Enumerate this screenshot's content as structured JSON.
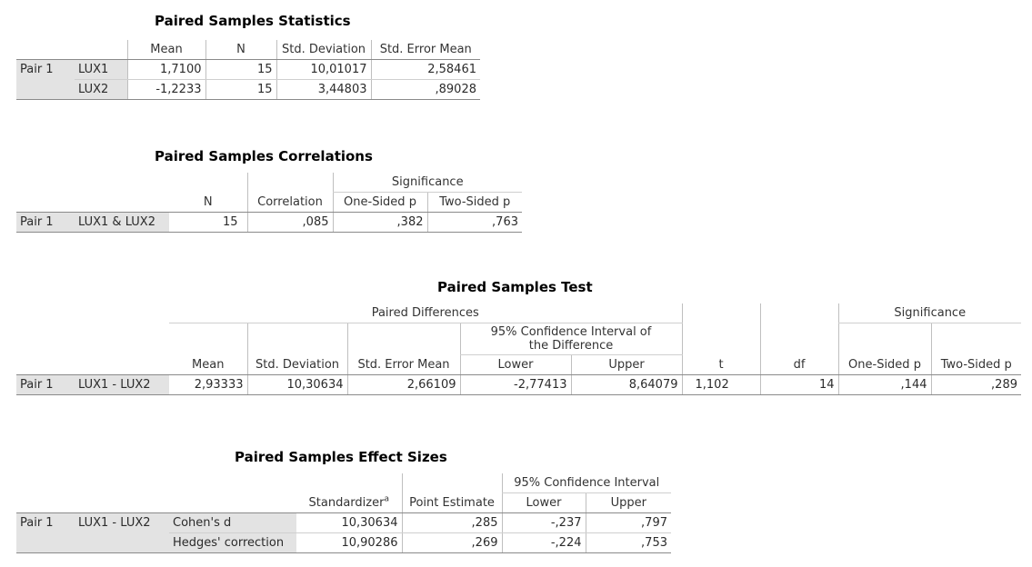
{
  "stats": {
    "title": "Paired Samples Statistics",
    "headers": [
      "Mean",
      "N",
      "Std. Deviation",
      "Std. Error Mean"
    ],
    "pair_label": "Pair 1",
    "rows": [
      {
        "var": "LUX1",
        "mean": "1,7100",
        "n": "15",
        "sd": "10,01017",
        "se": "2,58461"
      },
      {
        "var": "LUX2",
        "mean": "-1,2233",
        "n": "15",
        "sd": "3,44803",
        "se": ",89028"
      }
    ]
  },
  "corr": {
    "title": "Paired Samples Correlations",
    "significance": "Significance",
    "headers": [
      "N",
      "Correlation",
      "One-Sided p",
      "Two-Sided p"
    ],
    "row": {
      "pair": "Pair 1",
      "var": "LUX1 & LUX2",
      "n": "15",
      "corr": ",085",
      "one": ",382",
      "two": ",763"
    }
  },
  "test": {
    "title": "Paired Samples Test",
    "paired_differences": "Paired Differences",
    "ci": "95% Confidence Interval of the Difference",
    "significance": "Significance",
    "headers": [
      "Mean",
      "Std. Deviation",
      "Std. Error Mean",
      "Lower",
      "Upper",
      "t",
      "df",
      "One-Sided p",
      "Two-Sided p"
    ],
    "row": {
      "pair": "Pair 1",
      "var": "LUX1 - LUX2",
      "mean": "2,93333",
      "sd": "10,30634",
      "se": "2,66109",
      "lower": "-2,77413",
      "upper": "8,64079",
      "t": "1,102",
      "df": "14",
      "one": ",144",
      "two": ",289"
    }
  },
  "effect": {
    "title": "Paired Samples Effect Sizes",
    "ci": "95% Confidence Interval",
    "headers": [
      "Standardizer",
      "Point Estimate",
      "Lower",
      "Upper"
    ],
    "footnote_mark": "a",
    "pair_label": "Pair 1",
    "var": "LUX1 - LUX2",
    "rows": [
      {
        "measure": "Cohen's d",
        "std": "10,30634",
        "pe": ",285",
        "lower": "-,237",
        "upper": ",797"
      },
      {
        "measure": "Hedges' correction",
        "std": "10,90286",
        "pe": ",269",
        "lower": "-,224",
        "upper": ",753"
      }
    ]
  }
}
